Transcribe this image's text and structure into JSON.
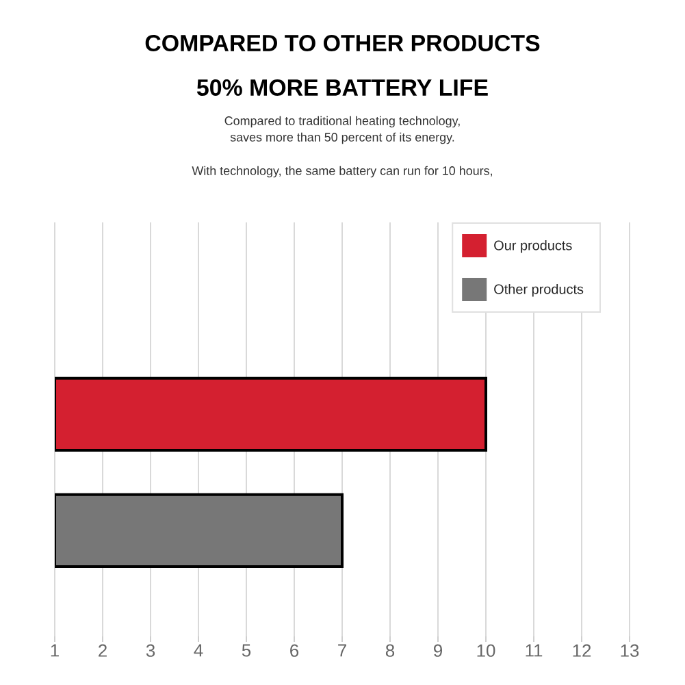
{
  "chart_data": {
    "type": "bar",
    "orientation": "horizontal",
    "title": "COMPARED TO OTHER PRODUCTS",
    "subtitle": "50% MORE BATTERY LIFE",
    "annotations": [
      "Compared to traditional heating technology,",
      "saves more than 50 percent of its energy.",
      "With technology, the same battery can run for 10 hours,"
    ],
    "categories": [
      null,
      null
    ],
    "series": [
      {
        "name": "Our products",
        "color": "#d42030",
        "values": [
          10,
          null
        ]
      },
      {
        "name": "Other products",
        "color": "#777777",
        "values": [
          null,
          7
        ]
      }
    ],
    "xlim": [
      1,
      13
    ],
    "xticks": [
      1,
      2,
      3,
      4,
      5,
      6,
      7,
      8,
      9,
      10,
      11,
      12,
      13
    ],
    "grid": "x",
    "legend": "top right"
  }
}
